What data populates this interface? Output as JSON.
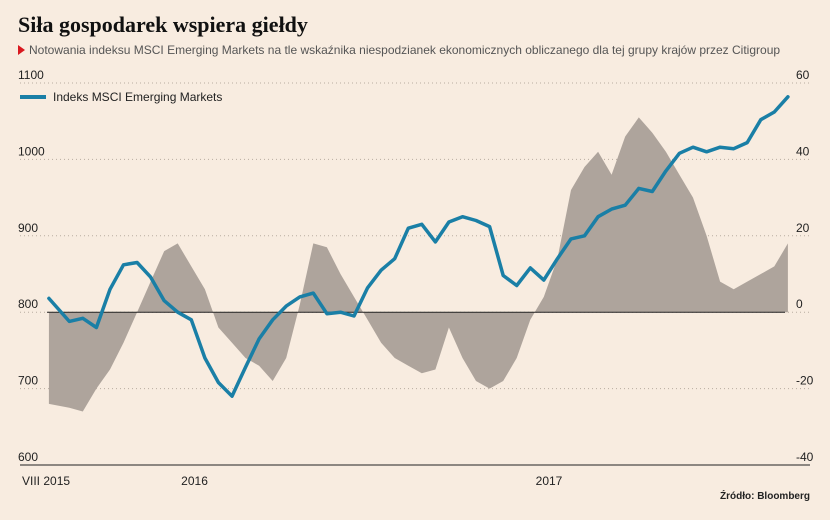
{
  "title": "Siła gospodarek wspiera giełdy",
  "subtitle": "Notowania indeksu MSCI Emerging Markets na tle wskaźnika niespodzianek ekonomicznych obliczanego dla tej grupy krajów przez Citigroup",
  "source": "Źródło: Bloomberg",
  "colors": {
    "line": "#1a7fa6",
    "area": "#aea49c",
    "background": "#f8ece0"
  },
  "chart_data": {
    "type": "line",
    "title": "Siła gospodarek wspiera giełdy",
    "subtitle": "Notowania indeksu MSCI Emerging Markets na tle wskaźnika niespodzianek ekonomicznych obliczanego dla tej grupy krajów przez Citigroup",
    "legend": {
      "position": "top-left",
      "entries": [
        "Indeks MSCI Emerging Markets"
      ]
    },
    "grid": "horizontal-dotted",
    "x_ticks": [
      {
        "label": "VIII 2015",
        "date": "2015-08"
      },
      {
        "label": "2016",
        "date": "2016-01"
      },
      {
        "label": "2017",
        "date": "2017-01"
      }
    ],
    "x_range": [
      "2015-08",
      "2017-09"
    ],
    "y_left": {
      "ylim": [
        600,
        1100
      ],
      "ticks": [
        600,
        700,
        800,
        900,
        1000,
        1100
      ]
    },
    "y_right": {
      "ylim": [
        -40,
        60
      ],
      "ticks": [
        -40,
        -20,
        0,
        20,
        40,
        60
      ]
    },
    "series": [
      {
        "name": "Indeks MSCI Emerging Markets",
        "type": "line",
        "axis": "left",
        "x": [
          "2015-08-03",
          "2015-08-24",
          "2015-09-07",
          "2015-09-21",
          "2015-10-05",
          "2015-10-19",
          "2015-11-02",
          "2015-11-16",
          "2015-11-30",
          "2015-12-14",
          "2015-12-28",
          "2016-01-11",
          "2016-01-25",
          "2016-02-08",
          "2016-02-22",
          "2016-03-07",
          "2016-03-21",
          "2016-04-04",
          "2016-04-18",
          "2016-05-02",
          "2016-05-16",
          "2016-05-30",
          "2016-06-13",
          "2016-06-27",
          "2016-07-11",
          "2016-07-25",
          "2016-08-08",
          "2016-08-22",
          "2016-09-05",
          "2016-09-19",
          "2016-10-03",
          "2016-10-17",
          "2016-10-31",
          "2016-11-14",
          "2016-11-28",
          "2016-12-12",
          "2016-12-26",
          "2017-01-09",
          "2017-01-23",
          "2017-02-06",
          "2017-02-20",
          "2017-03-06",
          "2017-03-20",
          "2017-04-03",
          "2017-04-17",
          "2017-05-01",
          "2017-05-15",
          "2017-05-29",
          "2017-06-12",
          "2017-06-26",
          "2017-07-10",
          "2017-07-24",
          "2017-08-07",
          "2017-08-21",
          "2017-09-04"
        ],
        "values": [
          818,
          788,
          792,
          780,
          830,
          862,
          865,
          846,
          815,
          800,
          790,
          740,
          708,
          690,
          728,
          765,
          790,
          808,
          820,
          825,
          798,
          800,
          795,
          832,
          855,
          870,
          910,
          915,
          892,
          918,
          925,
          920,
          912,
          848,
          835,
          858,
          842,
          870,
          896,
          900,
          925,
          935,
          940,
          962,
          958,
          985,
          1008,
          1016,
          1010,
          1016,
          1014,
          1022,
          1052,
          1062,
          1082
        ]
      },
      {
        "name": "",
        "type": "area",
        "axis": "right",
        "x": [
          "2015-08-03",
          "2015-08-24",
          "2015-09-07",
          "2015-09-21",
          "2015-10-05",
          "2015-10-19",
          "2015-11-02",
          "2015-11-16",
          "2015-11-30",
          "2015-12-14",
          "2015-12-28",
          "2016-01-11",
          "2016-01-25",
          "2016-02-08",
          "2016-02-22",
          "2016-03-07",
          "2016-03-21",
          "2016-04-04",
          "2016-04-18",
          "2016-05-02",
          "2016-05-16",
          "2016-05-30",
          "2016-06-13",
          "2016-06-27",
          "2016-07-11",
          "2016-07-25",
          "2016-08-08",
          "2016-08-22",
          "2016-09-05",
          "2016-09-19",
          "2016-10-03",
          "2016-10-17",
          "2016-10-31",
          "2016-11-14",
          "2016-11-28",
          "2016-12-12",
          "2016-12-26",
          "2017-01-09",
          "2017-01-23",
          "2017-02-06",
          "2017-02-20",
          "2017-03-06",
          "2017-03-20",
          "2017-04-03",
          "2017-04-17",
          "2017-05-01",
          "2017-05-15",
          "2017-05-29",
          "2017-06-12",
          "2017-06-26",
          "2017-07-10",
          "2017-07-24",
          "2017-08-07",
          "2017-08-21",
          "2017-09-04"
        ],
        "values": [
          -24,
          -25,
          -26,
          -20,
          -15,
          -8,
          0,
          8,
          16,
          18,
          12,
          6,
          -4,
          -8,
          -12,
          -14,
          -18,
          -12,
          2,
          18,
          17,
          10,
          4,
          -2,
          -8,
          -12,
          -14,
          -16,
          -15,
          -4,
          -12,
          -18,
          -20,
          -18,
          -12,
          -2,
          4,
          14,
          32,
          38,
          42,
          36,
          46,
          51,
          47,
          42,
          36,
          30,
          20,
          8,
          6,
          8,
          10,
          12,
          18
        ]
      }
    ]
  }
}
